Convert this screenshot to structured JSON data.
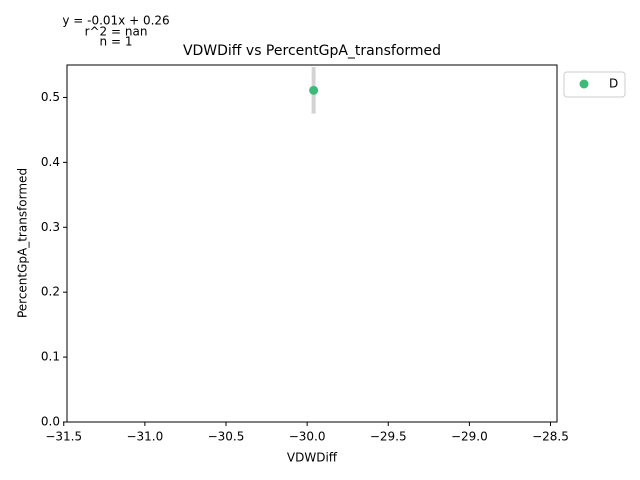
{
  "chart_data": {
    "type": "scatter",
    "title": "VDWDiff vs PercentGpA_transformed",
    "x_label": "VDWDiff",
    "y_label": "PercentGpA_transformed",
    "annotations": [
      "y = -0.01x + 0.26",
      "r^2 = nan",
      "n = 1"
    ],
    "series": [
      {
        "name": "D",
        "color": "#3dba78",
        "x": [
          -29.96
        ],
        "values": [
          0.511
        ],
        "errors": [
          0.036
        ]
      }
    ],
    "xlim": [
      -31.48,
      -28.46
    ],
    "xticks": [
      {
        "value": -31.5,
        "label": "−31.5"
      },
      {
        "value": -31.0,
        "label": "−31.0"
      },
      {
        "value": -30.5,
        "label": "−30.5"
      },
      {
        "value": -30.0,
        "label": "−30.0"
      },
      {
        "value": -29.5,
        "label": "−29.5"
      },
      {
        "value": -29.0,
        "label": "−29.0"
      },
      {
        "value": -28.5,
        "label": "−28.5"
      }
    ],
    "ylim": [
      0,
      0.55
    ],
    "yticks": [
      {
        "value": 0,
        "label": "0.0"
      },
      {
        "value": 0.1,
        "label": "0.1"
      },
      {
        "value": 0.2,
        "label": "0.2"
      },
      {
        "value": 0.3,
        "label": "0.3"
      },
      {
        "value": 0.4,
        "label": "0.4"
      },
      {
        "value": 0.5,
        "label": "0.5"
      }
    ],
    "grid": false,
    "legend": "outside-right"
  }
}
